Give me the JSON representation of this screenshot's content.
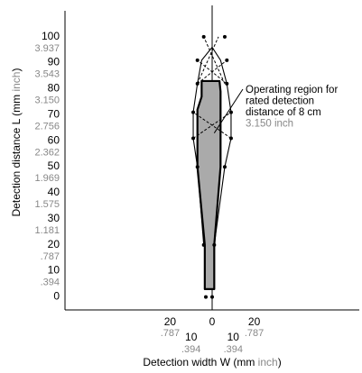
{
  "chart_data": {
    "type": "area",
    "xlabel_prefix": "Detection width W (mm ",
    "xlabel_unit": "inch",
    "xlabel_suffix": ")",
    "ylabel_prefix": "Detection distance L (mm ",
    "ylabel_unit": "inch",
    "ylabel_suffix": ")",
    "y_ticks": [
      {
        "mm": "0",
        "inch": ""
      },
      {
        "mm": "10",
        "inch": ".394"
      },
      {
        "mm": "20",
        "inch": ".787"
      },
      {
        "mm": "30",
        "inch": "1.181"
      },
      {
        "mm": "40",
        "inch": "1.575"
      },
      {
        "mm": "50",
        "inch": "1.969"
      },
      {
        "mm": "60",
        "inch": "2.362"
      },
      {
        "mm": "70",
        "inch": "2.756"
      },
      {
        "mm": "80",
        "inch": "3.150"
      },
      {
        "mm": "90",
        "inch": "3.543"
      },
      {
        "mm": "100",
        "inch": "3.937"
      }
    ],
    "x_ticks_top": [
      {
        "x": -20,
        "mm": "20",
        "inch": ".787"
      },
      {
        "x": 20,
        "mm": "20",
        "inch": ".787"
      }
    ],
    "x_ticks_bottom": [
      {
        "x": -10,
        "mm": "10",
        "inch": ".394"
      },
      {
        "x": 10,
        "mm": "10",
        "inch": ".394"
      }
    ],
    "x_zero_label": "0",
    "xlim": [
      -70,
      70
    ],
    "ylim": [
      -5,
      110
    ],
    "operating_region": [
      [
        -3.5,
        3
      ],
      [
        -3.5,
        20
      ],
      [
        -7,
        50
      ],
      [
        -7,
        72
      ],
      [
        -5,
        77
      ],
      [
        -5,
        83
      ],
      [
        3.5,
        83
      ],
      [
        4,
        79
      ],
      [
        4,
        50
      ],
      [
        1,
        20
      ],
      [
        1,
        3
      ]
    ],
    "detection_boundary": [
      [
        -4,
        20
      ],
      [
        -7,
        50
      ],
      [
        -9,
        61
      ],
      [
        -9,
        71
      ],
      [
        -7,
        82
      ],
      [
        -5,
        91
      ],
      [
        0,
        96
      ],
      [
        4,
        91
      ],
      [
        7,
        82
      ],
      [
        9,
        71
      ],
      [
        9,
        61
      ],
      [
        6,
        50
      ],
      [
        1,
        20
      ]
    ],
    "dashed_cross_lines": [
      [
        [
          -9,
          61
        ],
        [
          9,
          71
        ]
      ],
      [
        [
          9,
          61
        ],
        [
          -9,
          71
        ]
      ],
      [
        [
          -7,
          82
        ],
        [
          7,
          91
        ]
      ],
      [
        [
          7,
          82
        ],
        [
          -7,
          91
        ]
      ],
      [
        [
          -7,
          82
        ],
        [
          3,
          100
        ]
      ],
      [
        [
          6,
          82
        ],
        [
          -4,
          100
        ]
      ]
    ],
    "measured_points": [
      [
        -3,
        0
      ],
      [
        0,
        0
      ],
      [
        -4,
        20
      ],
      [
        1,
        20
      ],
      [
        -7,
        50
      ],
      [
        6,
        50
      ],
      [
        -9,
        61
      ],
      [
        9,
        61
      ],
      [
        -9,
        71
      ],
      [
        9,
        71
      ],
      [
        -7,
        82
      ],
      [
        7,
        82
      ],
      [
        -7,
        91
      ],
      [
        7,
        91
      ],
      [
        -4,
        100
      ],
      [
        6,
        100
      ]
    ],
    "annotation": {
      "line1": "Operating region for",
      "line2": "rated detection",
      "line3": "distance of 8 cm",
      "line4": "3.150 inch"
    },
    "annotation_target": [
      1,
      63
    ],
    "colors": {
      "region_fill": "#aaaaaa",
      "ink": "#000000",
      "inch_text": "#888888",
      "background": "#ffffff"
    }
  }
}
